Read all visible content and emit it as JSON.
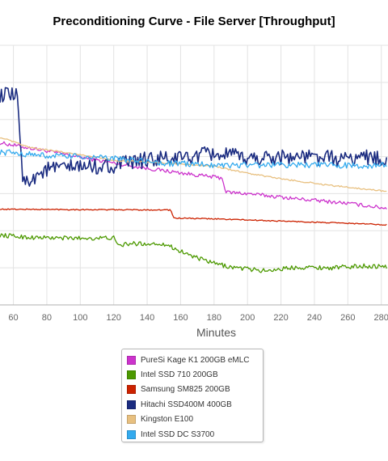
{
  "chart_data": {
    "type": "line",
    "title": "Preconditioning Curve - File Server [Throughput]",
    "xlabel": "Minutes",
    "ylabel": "",
    "x_ticks": [
      60,
      80,
      100,
      120,
      140,
      160,
      180,
      200,
      220,
      240,
      260,
      280
    ],
    "xlim": [
      52,
      284
    ],
    "ylim": [
      0,
      7
    ],
    "grid": true,
    "legend_position": "bottom-center",
    "series": [
      {
        "name": "PureSi Kage K1 200GB eMLC",
        "color": "#cc33cc",
        "points": [
          [
            52,
            4.37
          ],
          [
            80,
            4.15
          ],
          [
            110,
            3.9
          ],
          [
            140,
            3.68
          ],
          [
            170,
            3.5
          ],
          [
            185,
            3.42
          ],
          [
            187,
            3.04
          ],
          [
            200,
            3.0
          ],
          [
            230,
            2.86
          ],
          [
            260,
            2.74
          ],
          [
            284,
            2.6
          ],
          [
            284,
            2.6
          ]
        ]
      },
      {
        "name": "Intel SSD 710 200GB",
        "color": "#4c9900",
        "points": [
          [
            52,
            1.88
          ],
          [
            70,
            1.82
          ],
          [
            90,
            1.8
          ],
          [
            110,
            1.8
          ],
          [
            120,
            1.81
          ],
          [
            122,
            1.6
          ],
          [
            130,
            1.65
          ],
          [
            150,
            1.65
          ],
          [
            160,
            1.45
          ],
          [
            170,
            1.26
          ],
          [
            180,
            1.12
          ],
          [
            190,
            1.02
          ],
          [
            210,
            0.92
          ],
          [
            230,
            1.02
          ],
          [
            250,
            1.0
          ],
          [
            270,
            1.05
          ],
          [
            284,
            1.03
          ]
        ]
      },
      {
        "name": "Samsung SM825 200GB",
        "color": "#cc2200",
        "points": [
          [
            52,
            2.58
          ],
          [
            100,
            2.57
          ],
          [
            154,
            2.56
          ],
          [
            156,
            2.34
          ],
          [
            180,
            2.32
          ],
          [
            220,
            2.26
          ],
          [
            260,
            2.2
          ],
          [
            284,
            2.16
          ]
        ]
      },
      {
        "name": "Hitachi SSD400M 400GB",
        "color": "#1a2b80",
        "points": [
          [
            52,
            5.66
          ],
          [
            62,
            5.62
          ],
          [
            64,
            4.6
          ],
          [
            66,
            3.25
          ],
          [
            70,
            3.4
          ],
          [
            80,
            3.65
          ],
          [
            100,
            3.72
          ],
          [
            120,
            3.75
          ],
          [
            140,
            3.92
          ],
          [
            160,
            3.95
          ],
          [
            180,
            4.08
          ],
          [
            200,
            3.95
          ],
          [
            220,
            4.0
          ],
          [
            240,
            3.98
          ],
          [
            260,
            3.92
          ],
          [
            270,
            4.02
          ],
          [
            284,
            3.88
          ]
        ]
      },
      {
        "name": "Kingston E100",
        "color": "#e8c080",
        "points": [
          [
            52,
            4.52
          ],
          [
            70,
            4.24
          ],
          [
            90,
            4.12
          ],
          [
            110,
            3.98
          ],
          [
            120,
            3.9
          ],
          [
            150,
            3.82
          ],
          [
            180,
            3.74
          ],
          [
            200,
            3.55
          ],
          [
            220,
            3.4
          ],
          [
            250,
            3.22
          ],
          [
            284,
            3.06
          ]
        ]
      },
      {
        "name": "Intel SSD DC S3700",
        "color": "#33aaee",
        "points": [
          [
            52,
            4.12
          ],
          [
            60,
            4.1
          ],
          [
            80,
            4.02
          ],
          [
            100,
            4.0
          ],
          [
            120,
            3.95
          ],
          [
            150,
            3.82
          ],
          [
            180,
            3.78
          ],
          [
            200,
            3.77
          ],
          [
            230,
            3.78
          ],
          [
            260,
            3.76
          ],
          [
            284,
            3.76
          ]
        ]
      }
    ]
  }
}
